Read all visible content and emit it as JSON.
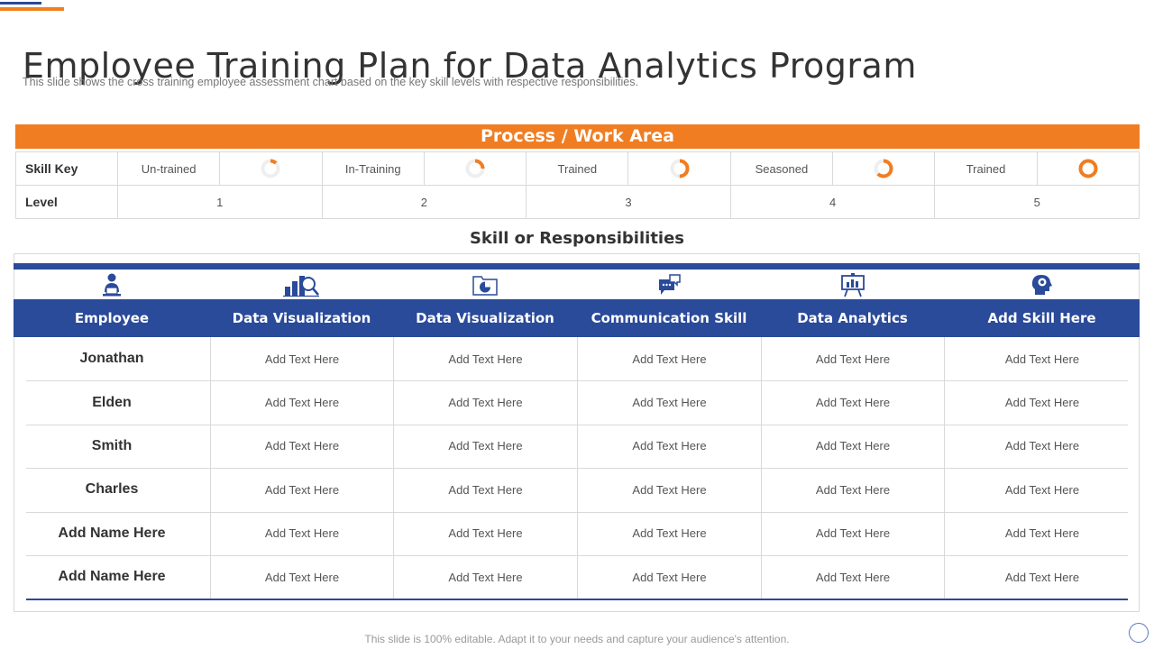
{
  "title": "Employee Training Plan for Data Analytics Program",
  "subtitle": "This slide shows the cross training employee assessment chart based on the key skill levels with respective responsibilities.",
  "process_bar": "Process / Work Area",
  "skill_key": {
    "row_label": "Skill Key",
    "level_label": "Level",
    "items": [
      {
        "label": "Un-trained",
        "level": "1",
        "fill_fraction": 0.125
      },
      {
        "label": "In-Training",
        "level": "2",
        "fill_fraction": 0.25
      },
      {
        "label": "Trained",
        "level": "3",
        "fill_fraction": 0.5
      },
      {
        "label": "Seasoned",
        "level": "4",
        "fill_fraction": 0.625
      },
      {
        "label": "Trained",
        "level": "5",
        "fill_fraction": 1.0
      }
    ],
    "ring_color": "#f07d22",
    "ring_track_color": "#eeeeee"
  },
  "skills_heading": "Skill or Responsibilities",
  "columns": [
    {
      "header": "Employee",
      "icon": "employee-laptop-icon"
    },
    {
      "header": "Data Visualization",
      "icon": "data-visualization-chart-icon"
    },
    {
      "header": "Data Visualization",
      "icon": "pie-chart-folder-icon"
    },
    {
      "header": "Communication Skill",
      "icon": "communication-chat-icon"
    },
    {
      "header": "Data Analytics",
      "icon": "presentation-board-icon"
    },
    {
      "header": "Add Skill Here",
      "icon": "head-gear-icon"
    }
  ],
  "rows": [
    {
      "name": "Jonathan",
      "cells": [
        "Add Text Here",
        "Add Text Here",
        "Add Text Here",
        "Add Text Here",
        "Add Text Here"
      ]
    },
    {
      "name": "Elden",
      "cells": [
        "Add Text Here",
        "Add Text Here",
        "Add Text Here",
        "Add Text Here",
        "Add Text Here"
      ]
    },
    {
      "name": "Smith",
      "cells": [
        "Add Text Here",
        "Add Text Here",
        "Add Text Here",
        "Add Text Here",
        "Add Text Here"
      ]
    },
    {
      "name": "Charles",
      "cells": [
        "Add Text Here",
        "Add Text Here",
        "Add Text Here",
        "Add Text Here",
        "Add Text Here"
      ]
    },
    {
      "name": "Add Name Here",
      "cells": [
        "Add Text Here",
        "Add Text Here",
        "Add Text Here",
        "Add Text Here",
        "Add Text Here"
      ]
    },
    {
      "name": "Add Name Here",
      "cells": [
        "Add Text Here",
        "Add Text Here",
        "Add Text Here",
        "Add Text Here",
        "Add Text Here"
      ]
    }
  ],
  "footer": "This slide is 100% editable. Adapt it to your needs and capture your audience's attention.",
  "colors": {
    "accent_orange": "#f07d22",
    "accent_blue": "#2a4a9a"
  }
}
